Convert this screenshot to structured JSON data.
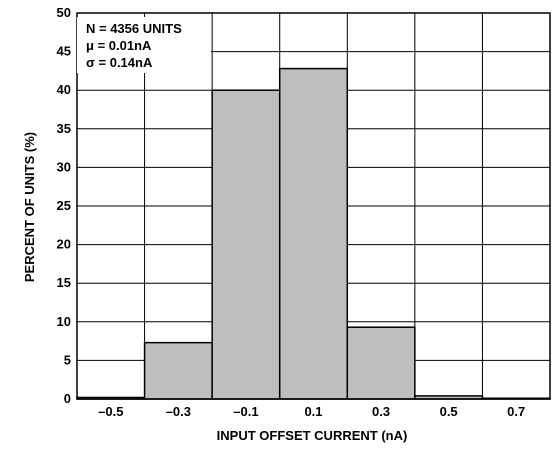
{
  "chart_data": {
    "type": "bar",
    "bin_centers": [
      -0.5,
      -0.3,
      -0.1,
      0.1,
      0.3,
      0.5,
      0.7
    ],
    "values": [
      0.2,
      7.3,
      40.0,
      42.8,
      9.3,
      0.4,
      0.1
    ],
    "xlabel": "INPUT OFFSET CURRENT (nA)",
    "ylabel": "PERCENT OF UNITS (%)",
    "xticks": [
      "–0.5",
      "–0.3",
      "–0.1",
      "0.1",
      "0.3",
      "0.5",
      "0.7"
    ],
    "yticks": [
      "0",
      "5",
      "10",
      "15",
      "20",
      "25",
      "30",
      "35",
      "40",
      "45",
      "50"
    ],
    "ylim": [
      0,
      50
    ],
    "grid": true,
    "bar_color": "#bcbec0",
    "annotations": [
      "N = 4356 UNITS",
      "μ = 0.01nA",
      "σ = 0.14nA"
    ]
  }
}
